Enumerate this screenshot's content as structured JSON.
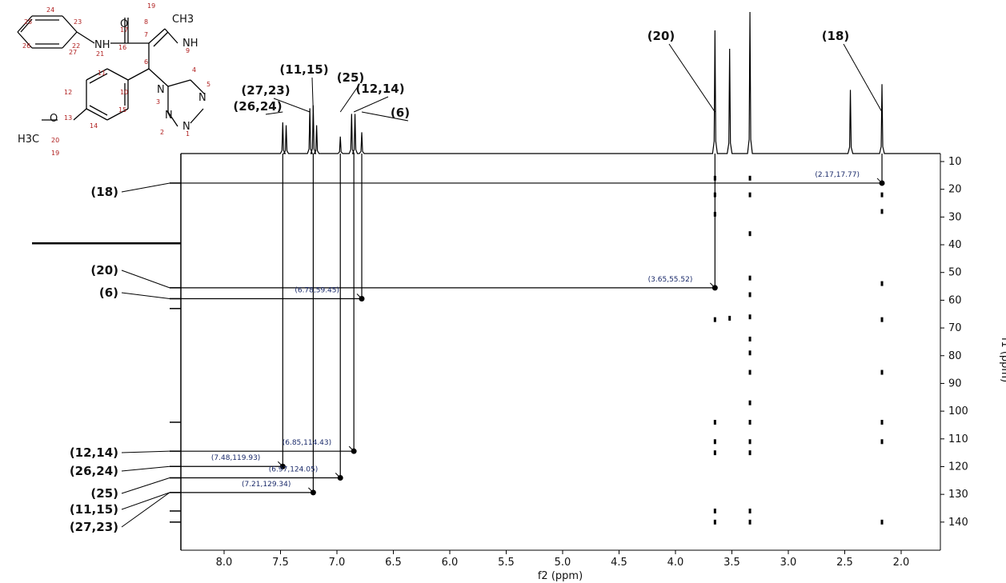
{
  "chart_data": {
    "type": "scatter",
    "xlabel": "f2 (ppm)",
    "ylabel": "f1 (ppm)",
    "xlim": [
      8.3,
      1.7
    ],
    "ylim": [
      5,
      145
    ],
    "x_ticks": [
      "8.0",
      "7.5",
      "7.0",
      "6.5",
      "6.0",
      "5.5",
      "5.0",
      "4.5",
      "4.0",
      "3.5",
      "3.0",
      "2.5",
      "2.0"
    ],
    "y_ticks": [
      "10",
      "20",
      "30",
      "40",
      "50",
      "60",
      "70",
      "80",
      "90",
      "100",
      "110",
      "120",
      "130",
      "140"
    ],
    "proton_peaks": [
      {
        "shift": 7.48,
        "height": 0.22
      },
      {
        "shift": 7.45,
        "height": 0.2
      },
      {
        "shift": 7.24,
        "height": 0.32
      },
      {
        "shift": 7.21,
        "height": 0.34
      },
      {
        "shift": 7.18,
        "height": 0.2
      },
      {
        "shift": 6.97,
        "height": 0.12
      },
      {
        "shift": 6.87,
        "height": 0.28
      },
      {
        "shift": 6.84,
        "height": 0.28
      },
      {
        "shift": 6.78,
        "height": 0.15
      },
      {
        "shift": 3.65,
        "height": 0.87
      },
      {
        "shift": 3.52,
        "height": 0.74
      },
      {
        "shift": 3.34,
        "height": 1.0
      },
      {
        "shift": 2.45,
        "height": 0.45
      },
      {
        "shift": 2.17,
        "height": 0.49
      }
    ],
    "proton_labels": [
      {
        "text": "(26,24)",
        "shift": 7.48
      },
      {
        "text": "(27,23)",
        "shift": 7.24
      },
      {
        "text": "(11,15)",
        "shift": 7.21
      },
      {
        "text": "(25)",
        "shift": 6.97
      },
      {
        "text": "(12,14)",
        "shift": 6.85
      },
      {
        "text": "(6)",
        "shift": 6.78
      },
      {
        "text": "(20)",
        "shift": 3.65
      },
      {
        "text": "(18)",
        "shift": 2.17
      }
    ],
    "correlations": [
      {
        "x": 2.17,
        "y": 17.77,
        "label": "(2.17,17.77)"
      },
      {
        "x": 3.65,
        "y": 55.52,
        "label": "(3.65,55.52)"
      },
      {
        "x": 6.78,
        "y": 59.45,
        "label": "(6.78,59.45)"
      },
      {
        "x": 6.85,
        "y": 114.43,
        "label": "(6.85,114.43)"
      },
      {
        "x": 7.48,
        "y": 119.93,
        "label": "(7.48,119.93)"
      },
      {
        "x": 6.97,
        "y": 124.05,
        "label": "(6.97,124.05)"
      },
      {
        "x": 7.21,
        "y": 129.34,
        "label": "(7.21,129.34)"
      }
    ],
    "carbon_labels": [
      {
        "text": "(18)",
        "shift": 17.77
      },
      {
        "text": "(20)",
        "shift": 55.52
      },
      {
        "text": "(6)",
        "shift": 59.45
      },
      {
        "text": "(12,14)",
        "shift": 114.43
      },
      {
        "text": "(26,24)",
        "shift": 119.93
      },
      {
        "text": "(25)",
        "shift": 124.05
      },
      {
        "text": "(11,15)",
        "shift": 129.34
      },
      {
        "text": "(27,23)",
        "shift": 129.34
      }
    ],
    "carbon_projection_peaks": [
      17.77,
      39.5,
      55.52,
      59.45,
      63.0,
      104.0,
      114.43,
      119.93,
      124.05,
      129.34,
      136.0,
      140.0
    ],
    "noise_marks": [
      {
        "x": 3.65,
        "y": 16
      },
      {
        "x": 3.65,
        "y": 22
      },
      {
        "x": 3.65,
        "y": 29
      },
      {
        "x": 3.65,
        "y": 67
      },
      {
        "x": 3.65,
        "y": 104
      },
      {
        "x": 3.65,
        "y": 111
      },
      {
        "x": 3.65,
        "y": 115
      },
      {
        "x": 3.65,
        "y": 136
      },
      {
        "x": 3.65,
        "y": 140
      },
      {
        "x": 3.52,
        "y": 66.5
      },
      {
        "x": 3.34,
        "y": 16
      },
      {
        "x": 3.34,
        "y": 22
      },
      {
        "x": 3.34,
        "y": 36
      },
      {
        "x": 3.34,
        "y": 52
      },
      {
        "x": 3.34,
        "y": 58
      },
      {
        "x": 3.34,
        "y": 66
      },
      {
        "x": 3.34,
        "y": 74
      },
      {
        "x": 3.34,
        "y": 79
      },
      {
        "x": 3.34,
        "y": 86
      },
      {
        "x": 3.34,
        "y": 97
      },
      {
        "x": 3.34,
        "y": 104
      },
      {
        "x": 3.34,
        "y": 111
      },
      {
        "x": 3.34,
        "y": 115
      },
      {
        "x": 3.34,
        "y": 136
      },
      {
        "x": 3.34,
        "y": 140
      },
      {
        "x": 2.17,
        "y": 22
      },
      {
        "x": 2.17,
        "y": 28
      },
      {
        "x": 2.17,
        "y": 54
      },
      {
        "x": 2.17,
        "y": 67
      },
      {
        "x": 2.17,
        "y": 86
      },
      {
        "x": 2.17,
        "y": 104
      },
      {
        "x": 2.17,
        "y": 111
      },
      {
        "x": 2.17,
        "y": 140
      }
    ]
  },
  "structure": {
    "atoms": [
      {
        "text": "O"
      },
      {
        "text": "NH"
      },
      {
        "text": "NH"
      },
      {
        "text": "CH3"
      },
      {
        "text": "N"
      },
      {
        "text": "N"
      },
      {
        "text": "N"
      },
      {
        "text": "N"
      },
      {
        "text": "H3C"
      },
      {
        "text": "O"
      }
    ],
    "numbers": [
      "24",
      "23",
      "25",
      "26",
      "22",
      "27",
      "17",
      "16",
      "19",
      "8",
      "7",
      "21",
      "9",
      "11",
      "6",
      "4",
      "12",
      "10",
      "3",
      "5",
      "13",
      "15",
      "2",
      "1",
      "20",
      "14",
      "19"
    ]
  }
}
